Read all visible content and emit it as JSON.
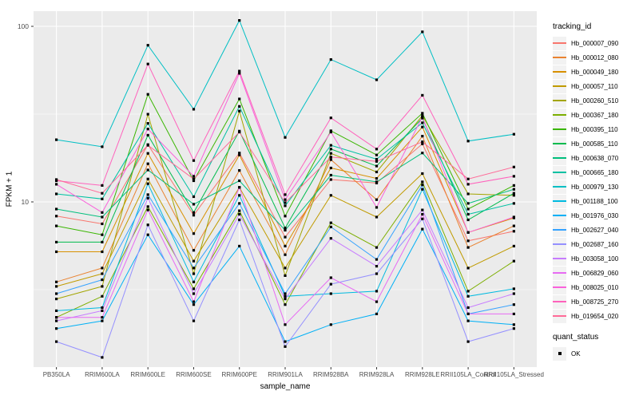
{
  "chart_data": {
    "type": "line",
    "title": "",
    "xlabel": "sample_name",
    "ylabel": "FPKM + 1",
    "y_scale": "log10",
    "yticks": [
      10,
      100
    ],
    "ytick_labels": [
      "10",
      "100"
    ],
    "y_minor_ticks": [
      3.1623,
      31.623
    ],
    "ylim": [
      1.15,
      122
    ],
    "grid": "white-on-gray-panel",
    "legend_position": "right",
    "point_marker": "black-square",
    "categories": [
      "PB350LA",
      "RRIM600LA",
      "RRIM600LE",
      "RRIM600SE",
      "RRIM600PE",
      "RRIM901LA",
      "RRIM928BA",
      "RRIM928LA",
      "RRIM928LE",
      "RRII105LA_Control",
      "RRII105LA_Stressed"
    ],
    "series": [
      {
        "name": "Hb_000007_090",
        "color": "#F8766D",
        "values": [
          8.3,
          7.5,
          21.2,
          8.4,
          19.0,
          6.3,
          13.4,
          12.8,
          21.4,
          6.0,
          6.8
        ]
      },
      {
        "name": "Hb_000012_080",
        "color": "#EA8331",
        "values": [
          3.5,
          4.2,
          16.5,
          5.3,
          15.1,
          5.0,
          17.4,
          10.3,
          23.7,
          5.5,
          7.3
        ]
      },
      {
        "name": "Hb_000049_180",
        "color": "#D89000",
        "values": [
          5.2,
          5.2,
          18.9,
          6.6,
          18.5,
          5.6,
          15.6,
          13.6,
          26.7,
          6.7,
          8.1
        ]
      },
      {
        "name": "Hb_000057_110",
        "color": "#C09B00",
        "values": [
          3.3,
          3.9,
          13.5,
          4.6,
          12.1,
          4.2,
          10.9,
          8.2,
          14.5,
          4.2,
          5.6
        ]
      },
      {
        "name": "Hb_000260_510",
        "color": "#A3A500",
        "values": [
          2.8,
          3.3,
          31.6,
          3.9,
          32.9,
          3.8,
          18.9,
          14.8,
          31.0,
          11.1,
          10.9
        ]
      },
      {
        "name": "Hb_000367_180",
        "color": "#7CAE00",
        "values": [
          2.2,
          2.9,
          9.4,
          3.2,
          8.9,
          2.6,
          7.6,
          5.5,
          13.0,
          3.1,
          4.6
        ]
      },
      {
        "name": "Hb_000395_110",
        "color": "#39B600",
        "values": [
          7.3,
          6.5,
          41.0,
          13.2,
          38.6,
          8.3,
          25.4,
          18.5,
          32.0,
          9.1,
          12.4
        ]
      },
      {
        "name": "Hb_000585_110",
        "color": "#00BB4E",
        "values": [
          5.9,
          5.9,
          24.0,
          8.7,
          25.3,
          7.1,
          20.0,
          16.0,
          30.0,
          7.9,
          11.2
        ]
      },
      {
        "name": "Hb_000638_070",
        "color": "#00BF7D",
        "values": [
          9.1,
          8.2,
          15.2,
          9.7,
          13.2,
          6.9,
          14.2,
          13.0,
          19.0,
          9.8,
          11.8
        ]
      },
      {
        "name": "Hb_000665_180",
        "color": "#00C1A3",
        "values": [
          11.1,
          10.4,
          28.0,
          10.7,
          35.0,
          9.5,
          21.0,
          17.5,
          28.2,
          8.5,
          9.8
        ]
      },
      {
        "name": "Hb_000979_130",
        "color": "#00BFC4",
        "values": [
          22.6,
          20.6,
          78.0,
          33.7,
          108.0,
          23.3,
          64.7,
          49.6,
          93.0,
          22.2,
          24.3
        ]
      },
      {
        "name": "Hb_001188_100",
        "color": "#00BAE0",
        "values": [
          2.4,
          2.5,
          12.7,
          3.5,
          10.9,
          2.9,
          3.0,
          3.1,
          11.8,
          2.9,
          3.2
        ]
      },
      {
        "name": "Hb_001976_030",
        "color": "#00B0F6",
        "values": [
          1.9,
          2.1,
          6.5,
          2.6,
          5.6,
          1.6,
          2.0,
          2.3,
          7.0,
          2.1,
          2.0
        ]
      },
      {
        "name": "Hb_002627_040",
        "color": "#35A2FF",
        "values": [
          3.0,
          3.6,
          11.0,
          4.2,
          9.8,
          3.0,
          7.2,
          4.7,
          12.5,
          2.3,
          2.6
        ]
      },
      {
        "name": "Hb_002687_160",
        "color": "#9590FF",
        "values": [
          1.6,
          1.3,
          7.4,
          2.1,
          7.9,
          1.5,
          3.4,
          3.9,
          8.0,
          1.6,
          1.9
        ]
      },
      {
        "name": "Hb_003058_100",
        "color": "#C77CFF",
        "values": [
          2.1,
          2.4,
          10.5,
          3.0,
          8.5,
          2.8,
          6.2,
          4.3,
          9.0,
          2.5,
          3.0
        ]
      },
      {
        "name": "Hb_006829_060",
        "color": "#E76BF3",
        "values": [
          2.2,
          2.2,
          9.0,
          2.7,
          12.1,
          2.0,
          3.7,
          2.7,
          8.5,
          2.3,
          2.3
        ]
      },
      {
        "name": "Hb_008025_010",
        "color": "#FA62DB",
        "values": [
          12.6,
          8.7,
          26.0,
          14.0,
          54.0,
          10.3,
          25.0,
          9.3,
          30.5,
          6.7,
          8.2
        ]
      },
      {
        "name": "Hb_008725_270",
        "color": "#FF62BC",
        "values": [
          13.2,
          12.4,
          61.0,
          17.2,
          55.6,
          11.0,
          30.1,
          20.0,
          40.5,
          12.6,
          14.0
        ]
      },
      {
        "name": "Hb_019654_020",
        "color": "#FF6A98",
        "values": [
          13.4,
          11.2,
          21.0,
          13.5,
          25.0,
          9.9,
          18.0,
          17.0,
          22.0,
          13.5,
          15.8
        ]
      }
    ]
  },
  "legend": {
    "color_title": "tracking_id",
    "shape_title": "quant_status",
    "shape_items": [
      {
        "label": "OK",
        "marker": "black-square"
      }
    ]
  },
  "colors": {
    "panel_bg": "#EBEBEB",
    "grid": "#FFFFFF",
    "tick_text": "#4D4D4D",
    "tick_mark": "#333333",
    "point": "#000000",
    "legend_key_bg": "#F2F2F2"
  }
}
